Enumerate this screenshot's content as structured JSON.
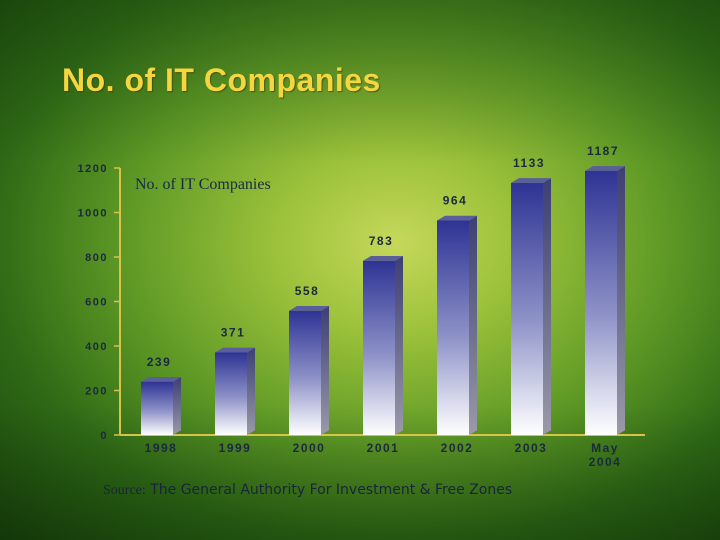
{
  "slide_title": "No. of IT Companies",
  "source": {
    "label": "Source:",
    "text": "The General Authority For Investment & Free Zones"
  },
  "colors": {
    "title": "#f4d640",
    "bar_top": "#3a3f9c",
    "bar_bottom": "#ffffff",
    "axis": "#d8c24a",
    "text": "#162a45"
  },
  "chart_data": {
    "type": "bar",
    "title": "No. of  IT Companies",
    "xlabel": "",
    "ylabel": "",
    "ylim": [
      0,
      1200
    ],
    "yticks": [
      "0",
      "200",
      "400",
      "600",
      "800",
      "1000",
      "1200"
    ],
    "grid": false,
    "categories": [
      "1998",
      "1999",
      "2000",
      "2001",
      "2002",
      "2003",
      "May 2004"
    ],
    "series": [
      {
        "name": "No. of IT Companies",
        "values": [
          239,
          371,
          558,
          783,
          964,
          1133,
          1187
        ]
      }
    ],
    "data_labels": [
      "239",
      "371",
      "558",
      "783",
      "964",
      "1133",
      "1187"
    ]
  }
}
